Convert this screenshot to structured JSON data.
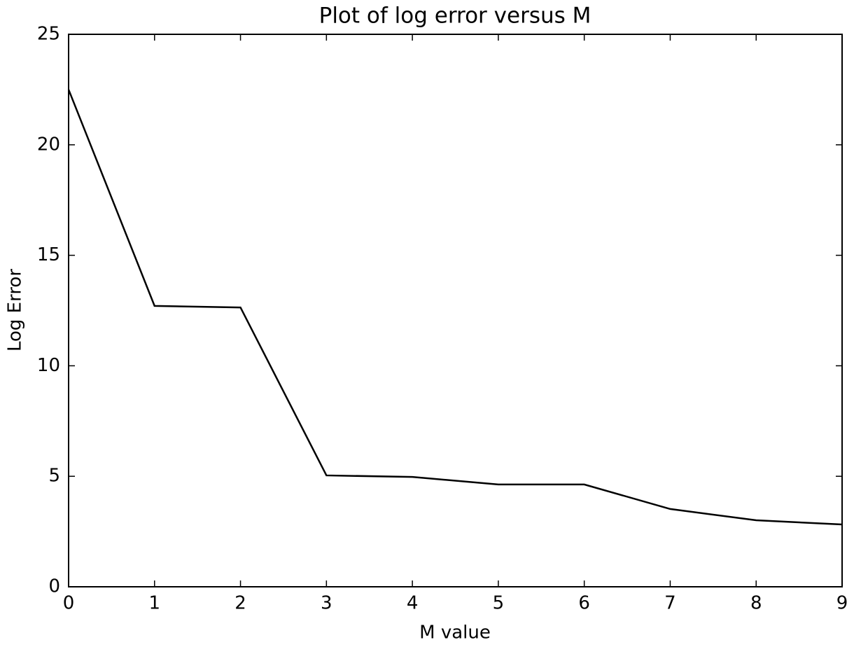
{
  "chart_data": {
    "type": "line",
    "title": "Plot of log error versus M",
    "x_label": "M value",
    "y_label": "Log Error",
    "x": [
      0,
      1,
      2,
      3,
      4,
      5,
      6,
      7,
      8,
      9
    ],
    "values": [
      22.5,
      12.71,
      12.64,
      5.04,
      4.97,
      4.63,
      4.63,
      3.52,
      3.01,
      2.82
    ],
    "color": "#000000",
    "xlim": [
      0,
      9
    ],
    "xticks": [
      0,
      1,
      2,
      3,
      4,
      5,
      6,
      7,
      8,
      9
    ],
    "ylim": [
      0,
      25
    ],
    "yticks": [
      0,
      5,
      10,
      15,
      20,
      25
    ],
    "grid": false
  }
}
